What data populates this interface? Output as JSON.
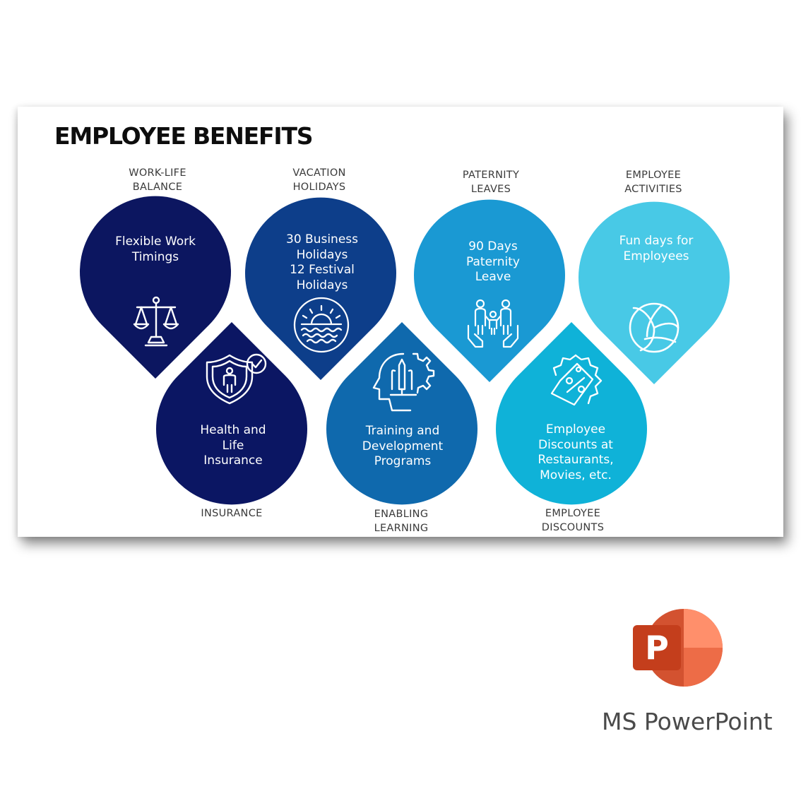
{
  "title": "EMPLOYEE BENEFITS",
  "benefits": [
    {
      "caption": [
        "WORK-LIFE",
        "BALANCE"
      ],
      "text": [
        "Flexible Work",
        "Timings"
      ],
      "color": "#0c1660",
      "icon": "balance-scale-icon"
    },
    {
      "caption": [
        "VACATION",
        "HOLIDAYS"
      ],
      "text": [
        "30 Business",
        "Holidays",
        "12 Festival",
        "Holidays"
      ],
      "color": "#0d3e8a",
      "icon": "sunset-waves-icon"
    },
    {
      "caption": [
        "PATERNITY",
        "LEAVES"
      ],
      "text": [
        "90 Days",
        "Paternity",
        "Leave"
      ],
      "color": "#1a99d3",
      "icon": "family-hands-icon"
    },
    {
      "caption": [
        "EMPLOYEE",
        "ACTIVITIES"
      ],
      "text": [
        "Fun days for",
        "Employees"
      ],
      "color": "#48c9e6",
      "icon": "volleyball-icon"
    },
    {
      "caption": [
        "INSURANCE"
      ],
      "text": [
        "Health and",
        "Life",
        "Insurance"
      ],
      "color": "#0b1663",
      "icon": "shield-person-icon"
    },
    {
      "caption": [
        "ENABLING",
        "LEARNING"
      ],
      "text": [
        "Training and",
        "Development",
        "Programs"
      ],
      "color": "#0f69ad",
      "icon": "head-gear-icon"
    },
    {
      "caption": [
        "EMPLOYEE",
        "DISCOUNTS"
      ],
      "text": [
        "Employee",
        "Discounts at",
        "Restaurants,",
        "Movies, etc."
      ],
      "color": "#0fb2d8",
      "icon": "discount-tag-icon"
    }
  ],
  "app": {
    "name": "MS PowerPoint",
    "logo_letter": "P"
  }
}
